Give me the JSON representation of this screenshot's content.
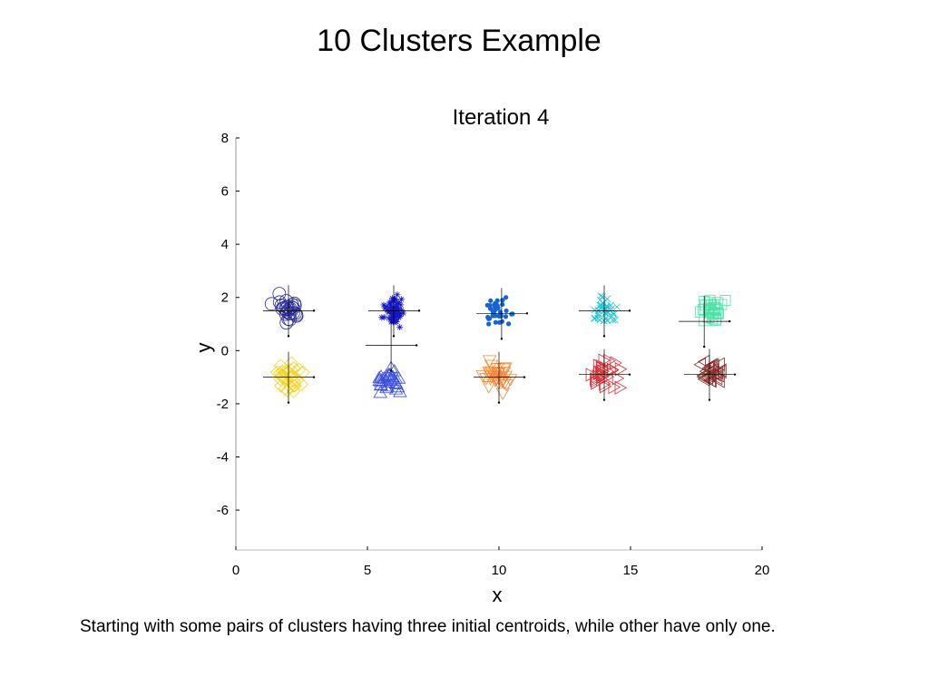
{
  "slide": {
    "title": "10 Clusters Example",
    "caption": "Starting with some pairs of clusters having three initial centroids, while other have only one."
  },
  "chart_data": {
    "type": "scatter",
    "title": "Iteration 4",
    "xlabel": "x",
    "ylabel": "y",
    "xlim": [
      0,
      20
    ],
    "ylim": [
      -7.5,
      8
    ],
    "xticks": [
      "0",
      "5",
      "10",
      "15",
      "20"
    ],
    "yticks": [
      "-6",
      "-4",
      "-2",
      "0",
      "2",
      "4",
      "6",
      "8"
    ],
    "grid": false,
    "clusters": [
      {
        "marker": "circle",
        "color": "#2a2a9a",
        "center": [
          2,
          1.5
        ],
        "spread": [
          0.35,
          0.4
        ],
        "count": 28,
        "centroid": [
          2,
          1.5
        ]
      },
      {
        "marker": "diamond",
        "color": "#f5d21e",
        "center": [
          2,
          -1
        ],
        "spread": [
          0.35,
          0.35
        ],
        "count": 30,
        "centroid": [
          2,
          -1
        ]
      },
      {
        "marker": "star",
        "color": "#1515c8",
        "center": [
          6,
          1.5
        ],
        "spread": [
          0.25,
          0.35
        ],
        "count": 60,
        "centroid": [
          6,
          1.5
        ]
      },
      {
        "marker": "triangle-up",
        "color": "#3b4fd8",
        "center": [
          5.8,
          -1.1
        ],
        "spread": [
          0.4,
          0.3
        ],
        "count": 30,
        "centroid": [
          5.9,
          0.2
        ]
      },
      {
        "marker": "dot",
        "color": "#1464d2",
        "center": [
          10,
          1.4
        ],
        "spread": [
          0.35,
          0.35
        ],
        "count": 40,
        "centroid": [
          10.1,
          1.4
        ]
      },
      {
        "marker": "triangle-down",
        "color": "#f08a3c",
        "center": [
          10,
          -1
        ],
        "spread": [
          0.35,
          0.35
        ],
        "count": 30,
        "centroid": [
          10,
          -1
        ]
      },
      {
        "marker": "x",
        "color": "#19c6d6",
        "center": [
          14,
          1.5
        ],
        "spread": [
          0.35,
          0.35
        ],
        "count": 40,
        "centroid": [
          14,
          1.5
        ]
      },
      {
        "marker": "triangle-right",
        "color": "#d6343c",
        "center": [
          14,
          -0.9
        ],
        "spread": [
          0.4,
          0.35
        ],
        "count": 30,
        "centroid": [
          14,
          -0.9
        ]
      },
      {
        "marker": "square",
        "color": "#4ee0a8",
        "center": [
          18,
          1.5
        ],
        "spread": [
          0.35,
          0.35
        ],
        "count": 30,
        "centroid": [
          17.8,
          1.1
        ]
      },
      {
        "marker": "triangle-left",
        "color": "#8a2a2a",
        "center": [
          18,
          -0.9
        ],
        "spread": [
          0.35,
          0.35
        ],
        "count": 30,
        "centroid": [
          18,
          -0.9
        ]
      }
    ]
  }
}
